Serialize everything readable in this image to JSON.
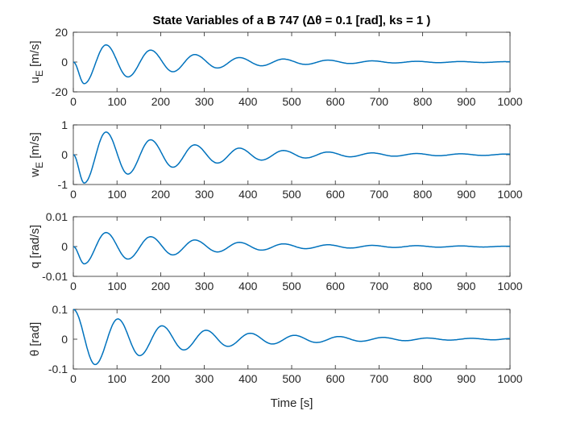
{
  "chart_data": {
    "title": "State Variables of a B 747 (Δθ = 0.1 [rad], ks = 1 )",
    "type": "line",
    "line_color": "#0072BD",
    "grid": false,
    "xlabel": "Time [s]",
    "xlim": [
      0,
      1000
    ],
    "xticks": [
      "0",
      "100",
      "200",
      "300",
      "400",
      "500",
      "600",
      "700",
      "800",
      "900",
      "1000"
    ],
    "subplots": [
      {
        "name": "uE",
        "ylabel": "u_E [m/s]",
        "ylim": [
          -20,
          20
        ],
        "yticks": [
          {
            "v": -20,
            "label": "-20"
          },
          {
            "v": 0,
            "label": "0"
          },
          {
            "v": 20,
            "label": "20"
          }
        ],
        "x": [
          0,
          25,
          75,
          125,
          177,
          228,
          278,
          330,
          380,
          431,
          481,
          532,
          583,
          634,
          684,
          735,
          786,
          836,
          887,
          938,
          988,
          1000
        ],
        "y": [
          0,
          -14.5,
          11.5,
          -10,
          8,
          -6.5,
          5,
          -4,
          3,
          -2.5,
          2,
          -1.6,
          1.3,
          -1,
          0.8,
          -0.6,
          0.5,
          -0.4,
          0.35,
          -0.3,
          0.25,
          0.2
        ]
      },
      {
        "name": "wE",
        "ylabel": "w_E [m/s]",
        "ylim": [
          -1,
          1
        ],
        "yticks": [
          {
            "v": -1,
            "label": "-1"
          },
          {
            "v": 0,
            "label": "0"
          },
          {
            "v": 1,
            "label": "1"
          }
        ],
        "x": [
          0,
          25,
          75,
          125,
          177,
          228,
          278,
          330,
          380,
          431,
          481,
          532,
          583,
          634,
          684,
          735,
          786,
          836,
          887,
          938,
          988,
          1000
        ],
        "y": [
          0,
          -0.95,
          0.76,
          -0.65,
          0.5,
          -0.42,
          0.33,
          -0.28,
          0.22,
          -0.18,
          0.14,
          -0.11,
          0.09,
          -0.07,
          0.06,
          -0.05,
          0.04,
          -0.035,
          0.03,
          -0.025,
          0.02,
          0.02
        ]
      },
      {
        "name": "q",
        "ylabel": "q [rad/s]",
        "ylim": [
          -0.01,
          0.01
        ],
        "yticks": [
          {
            "v": -0.01,
            "label": "-0.01"
          },
          {
            "v": 0,
            "label": "0"
          },
          {
            "v": 0.01,
            "label": "0.01"
          }
        ],
        "x": [
          0,
          25,
          75,
          125,
          177,
          228,
          278,
          330,
          380,
          431,
          481,
          532,
          583,
          634,
          684,
          735,
          786,
          836,
          887,
          938,
          988,
          1000
        ],
        "y": [
          0,
          -0.0058,
          0.0047,
          -0.0042,
          0.0033,
          -0.0028,
          0.0022,
          -0.0018,
          0.0014,
          -0.0012,
          0.0009,
          -0.0007,
          0.0006,
          -0.0005,
          0.0004,
          -0.0003,
          0.0003,
          -0.0002,
          0.0002,
          -0.00015,
          0.00012,
          0.0001
        ]
      },
      {
        "name": "theta",
        "ylabel": "θ [rad]",
        "ylim": [
          -0.1,
          0.1
        ],
        "yticks": [
          {
            "v": -0.1,
            "label": "-0.1"
          },
          {
            "v": 0,
            "label": "0"
          },
          {
            "v": 0.1,
            "label": "0.1"
          }
        ],
        "x": [
          0,
          50,
          102,
          152,
          203,
          253,
          304,
          354,
          405,
          456,
          506,
          557,
          608,
          658,
          709,
          760,
          810,
          861,
          912,
          962,
          1000
        ],
        "y": [
          0.1,
          -0.085,
          0.068,
          -0.055,
          0.045,
          -0.036,
          0.03,
          -0.024,
          0.02,
          -0.016,
          0.013,
          -0.011,
          0.009,
          -0.007,
          0.006,
          -0.005,
          0.004,
          -0.003,
          0.003,
          -0.002,
          0.002
        ]
      }
    ]
  }
}
